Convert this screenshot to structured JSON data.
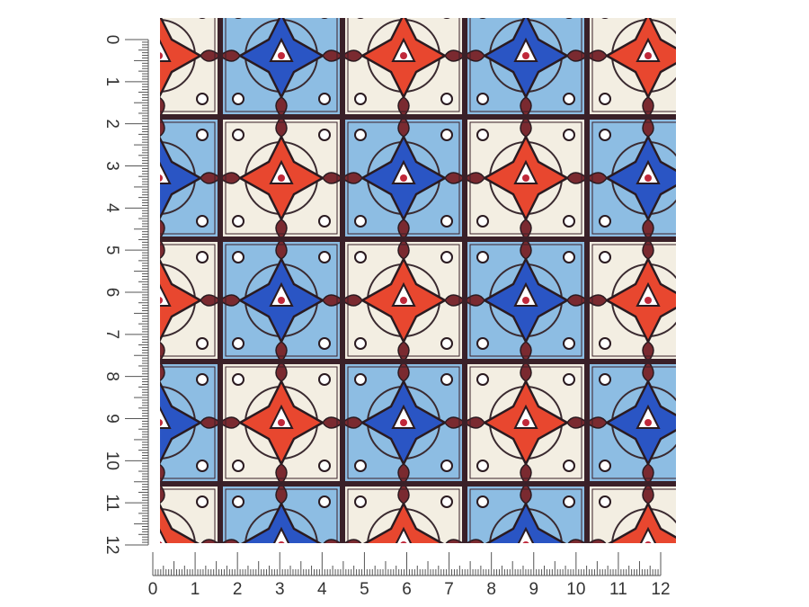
{
  "left_ruler": {
    "labels": [
      "0",
      "1",
      "2",
      "3",
      "4",
      "5",
      "6",
      "7",
      "8",
      "9",
      "10",
      "11",
      "12"
    ]
  },
  "bottom_ruler": {
    "labels": [
      "0",
      "1",
      "2",
      "3",
      "4",
      "5",
      "6",
      "7",
      "8",
      "9",
      "10",
      "11",
      "12"
    ]
  }
}
